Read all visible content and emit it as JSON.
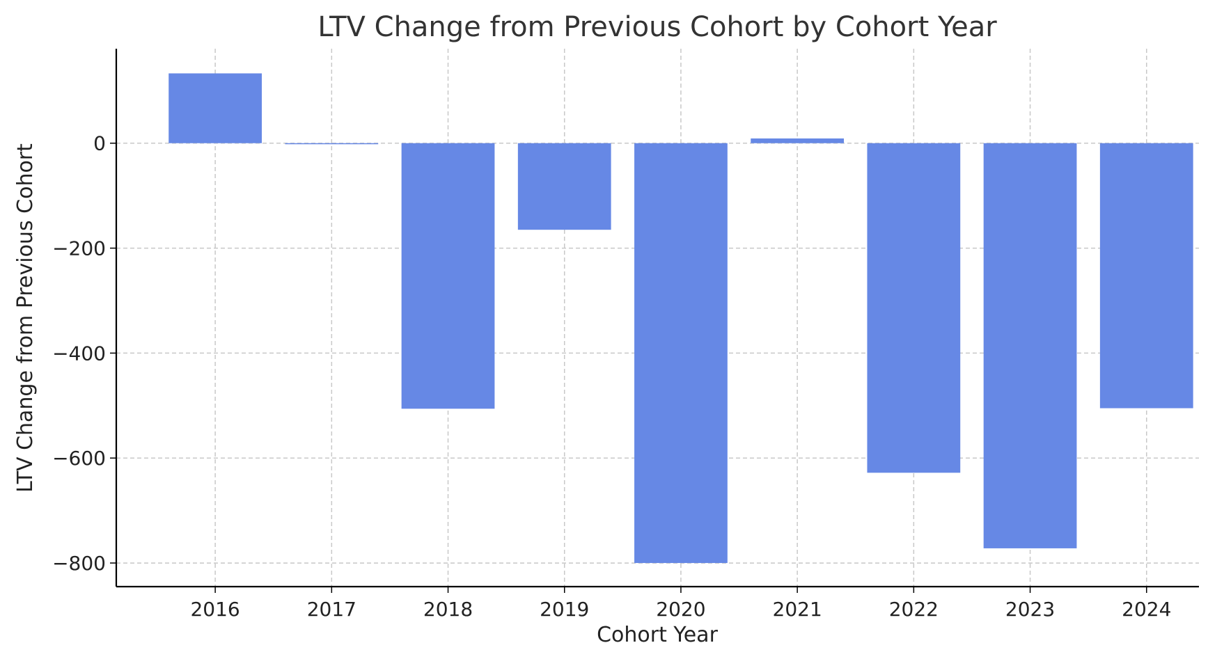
{
  "chart_data": {
    "type": "bar",
    "title": "LTV Change from Previous Cohort by Cohort Year",
    "xlabel": "Cohort Year",
    "ylabel": "LTV Change from Previous Cohort",
    "categories": [
      "2016",
      "2017",
      "2018",
      "2019",
      "2020",
      "2021",
      "2022",
      "2023",
      "2024"
    ],
    "values": [
      133,
      -2,
      -506,
      -165,
      -800,
      9,
      -628,
      -772,
      -505
    ],
    "ylim": [
      -845,
      180
    ],
    "yticks": [
      0,
      -200,
      -400,
      -600,
      -800
    ],
    "ytick_labels": [
      "0",
      "−200",
      "−400",
      "−600",
      "−800"
    ],
    "grid": true,
    "bar_color": "#6688e5"
  }
}
